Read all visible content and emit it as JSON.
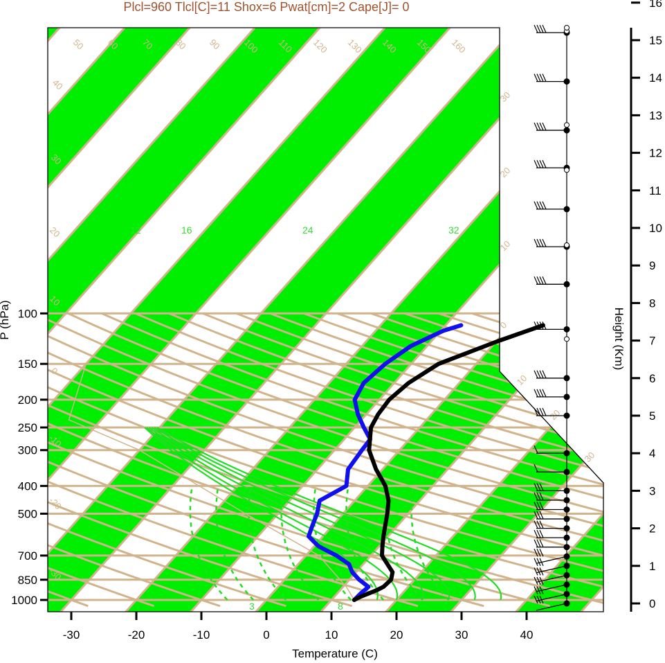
{
  "title": "Plcl=960 Tlcl[C]=11 Shox=6 Pwat[cm]=2 Cape[J]= 0",
  "colors": {
    "band": "#00ee00",
    "iso": "#d2b48c",
    "title": "#a0522d",
    "temp": "#000000",
    "dew": "#1010ee",
    "mix": "#22dd22"
  },
  "chart_data": {
    "type": "line",
    "xlabel": "Temperature (C)",
    "ylabel": "P (hPa)",
    "y2label": "Height (Km)",
    "xticks": [
      -30,
      -20,
      -10,
      0,
      10,
      20,
      30,
      40
    ],
    "xtick_labels": [
      "-30",
      "-20",
      "-10",
      "0",
      "10",
      "20",
      "30",
      "40"
    ],
    "yticks": [
      100,
      150,
      200,
      250,
      300,
      400,
      500,
      700,
      850,
      1000
    ],
    "ytick_labels": [
      "100",
      "150",
      "200",
      "250",
      "300",
      "400",
      "500",
      "700",
      "850",
      "1000"
    ],
    "height_ticks": [
      0,
      1,
      2,
      3,
      4,
      5,
      6,
      7,
      8,
      9,
      10,
      11,
      12,
      13,
      14,
      15,
      16
    ],
    "height_tick_labels": [
      "0",
      "1",
      "2",
      "3",
      "4",
      "5",
      "6",
      "7",
      "8",
      "9",
      "10",
      "11",
      "12",
      "13",
      "14",
      "15",
      "16"
    ],
    "isotherm_labels": [
      "50",
      "60",
      "70",
      "80",
      "90",
      "100",
      "110",
      "120",
      "130",
      "140",
      "150",
      "160",
      "30",
      "20",
      "10",
      "0",
      "10",
      "20",
      "30"
    ],
    "left_labels": [
      "40",
      "30",
      "20",
      "10",
      "0",
      "-10",
      "-20",
      "-30"
    ],
    "mixing_labels": [
      "12",
      "16",
      "24",
      "32",
      "3",
      "8"
    ],
    "temperature": {
      "name": "Temperature",
      "p": [
        1000,
        975,
        950,
        925,
        900,
        850,
        800,
        750,
        700,
        650,
        600,
        550,
        500,
        450,
        400,
        350,
        300,
        250,
        225,
        200,
        175,
        150,
        125,
        110
      ],
      "t": [
        13.5,
        14.0,
        14.8,
        15.6,
        16.2,
        16.4,
        15.6,
        13.7,
        11.7,
        10.5,
        9.3,
        8.1,
        6.8,
        5.2,
        2.7,
        -1.0,
        -4.7,
        -7.5,
        -8.2,
        -8.5,
        -7.8,
        -5.8,
        0.2,
        5.0
      ]
    },
    "dewpoint": {
      "name": "Dewpoint",
      "p": [
        1000,
        950,
        900,
        850,
        800,
        750,
        700,
        650,
        600,
        550,
        500,
        450,
        400,
        350,
        300,
        275,
        250,
        225,
        200,
        175,
        150,
        130,
        115,
        110
      ],
      "td": [
        13.5,
        13.6,
        13.9,
        11.5,
        9.4,
        7.8,
        4.7,
        0.7,
        -2.2,
        -3.1,
        -4.0,
        -5.4,
        -3.3,
        -5.3,
        -5.8,
        -6.0,
        -8.6,
        -11.3,
        -13.8,
        -14.7,
        -14.0,
        -12.5,
        -9.6,
        -7.6
      ]
    },
    "wind_barbs_heights_km": [
      0,
      0.25,
      0.5,
      0.75,
      1,
      1.25,
      1.5,
      1.75,
      2,
      2.25,
      2.5,
      2.75,
      3,
      3.5,
      4,
      5,
      5.5,
      6,
      7.3,
      8.5,
      9.5,
      10.5,
      11.6,
      12.6,
      13.9,
      15.2
    ]
  }
}
